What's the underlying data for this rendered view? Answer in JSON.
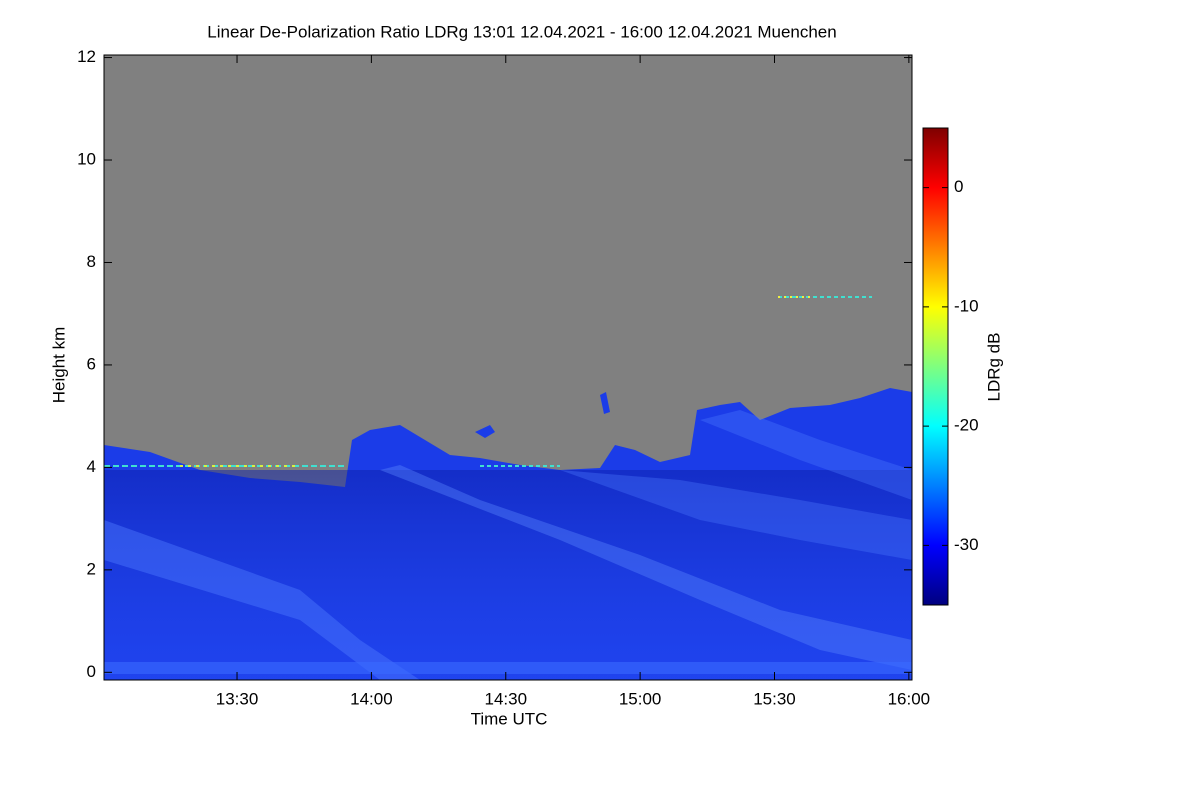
{
  "chart_data": {
    "type": "heatmap",
    "title": "Linear De-Polarization Ratio LDRg   13:01 12.04.2021 - 16:00 12.04.2021 Muenchen",
    "x_label": "Time UTC",
    "y_label": "Height km",
    "colorbar_label": "LDRg dB",
    "xlim": [
      780.3,
      960.7
    ],
    "xticks": [
      {
        "value": 810,
        "label": "13:30"
      },
      {
        "value": 840,
        "label": "14:00"
      },
      {
        "value": 870,
        "label": "14:30"
      },
      {
        "value": 900,
        "label": "15:00"
      },
      {
        "value": 930,
        "label": "15:30"
      },
      {
        "value": 960,
        "label": "16:00"
      }
    ],
    "ylim": [
      -0.15,
      12.05
    ],
    "yticks": [
      0,
      2,
      4,
      6,
      8,
      10,
      12
    ],
    "clim": [
      -35,
      5
    ],
    "cticks": [
      0,
      -10,
      -20,
      -30
    ],
    "colormap": "jet",
    "grid": false
  }
}
